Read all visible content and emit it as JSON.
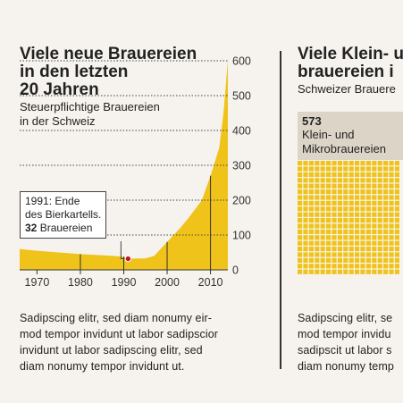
{
  "left": {
    "title_line1": "Viele neue Brauereien",
    "title_line2": "in den letzten",
    "title_line3": "20 Jahren",
    "subtitle_line1": "Steuerpflichtige Brauereien",
    "subtitle_line2": "in der Schweiz",
    "callout_line1": "1991: Ende",
    "callout_line2": "des Bierkartells.",
    "callout_number": "32",
    "callout_unit": "Brauereien",
    "paragraph": [
      "Sadipscing elitr, sed diam nonumy eir-",
      "mod tempor invidunt ut labor sadipscior",
      "invidunt ut labor sadipscing elitr, sed",
      "diam nonumy tempor invidunt ut."
    ]
  },
  "right": {
    "title_line1": "Viele Klein- u",
    "title_line2": "brauereien i",
    "subtitle": "Schweizer Brauere",
    "box_number": "573",
    "box_label_line1": "Klein- und",
    "box_label_line2": "Mikrobrauereien",
    "paragraph": [
      "Sadipscing elitr, se",
      "mod tempor invidu",
      "sadipscit ut labor s",
      "diam nonumy temp"
    ]
  },
  "colors": {
    "area": "#efc31a",
    "text": "#222222",
    "box": "#ddd4c8",
    "highlight": "#c8102e",
    "background": "#f6f3ee"
  },
  "chart_data": {
    "type": "area",
    "title": "Viele neue Brauereien in den letzten 20 Jahren",
    "subtitle": "Steuerpflichtige Brauereien in der Schweiz",
    "x": [
      1966,
      1970,
      1975,
      1980,
      1985,
      1990,
      1991,
      1995,
      1997,
      2000,
      2003,
      2005,
      2008,
      2010,
      2012,
      2013,
      2014
    ],
    "values": [
      60,
      55,
      50,
      45,
      42,
      38,
      32,
      33,
      40,
      80,
      120,
      150,
      200,
      270,
      350,
      450,
      600
    ],
    "xticks": [
      "1970",
      "1980",
      "1990",
      "2000",
      "2010"
    ],
    "yticks": [
      "0",
      "100",
      "200",
      "300",
      "400",
      "500",
      "600"
    ],
    "xlim": [
      1966,
      2014
    ],
    "ylim": [
      0,
      600
    ],
    "highlight": {
      "x": 1991,
      "y": 32
    },
    "y_axis_position": "right",
    "grid": "dotted horizontal"
  }
}
